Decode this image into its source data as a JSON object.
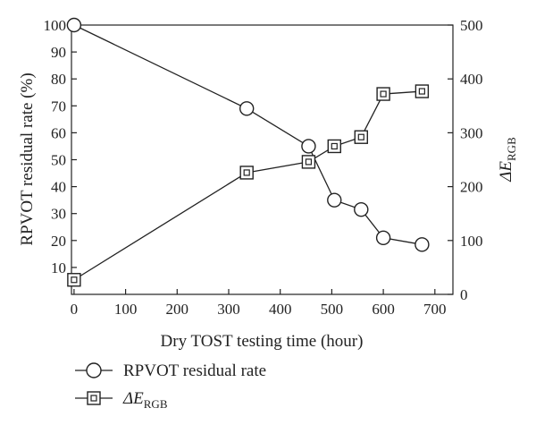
{
  "chart_data": {
    "type": "line",
    "xlabel": "Dry TOST testing time (hour)",
    "ylabel_left": "RPVOT residual rate (%)",
    "ylabel_right": {
      "base": "ΔE",
      "subscript": "RGB"
    },
    "xlim": [
      -5,
      735
    ],
    "ylim_left": [
      0,
      100
    ],
    "ylim_right": [
      0,
      500
    ],
    "x_ticks": [
      "0",
      "100",
      "200",
      "300",
      "400",
      "500",
      "600",
      "700"
    ],
    "y_ticks_left": [
      "10",
      "20",
      "30",
      "40",
      "50",
      "60",
      "70",
      "80",
      "90",
      "100"
    ],
    "y_ticks_right": [
      "0",
      "100",
      "200",
      "300",
      "400",
      "500"
    ],
    "series": [
      {
        "name": "RPVOT residual rate",
        "axis": "left",
        "marker": "circle",
        "x": [
          0,
          335,
          455,
          505,
          557,
          600,
          675
        ],
        "y": [
          100,
          69,
          55,
          35,
          31.5,
          21,
          18.5
        ]
      },
      {
        "name": {
          "base": "ΔE",
          "subscript": "RGB"
        },
        "axis": "right",
        "marker": "square-dot",
        "x": [
          0,
          335,
          455,
          505,
          557,
          600,
          675
        ],
        "y": [
          27,
          226,
          246,
          275,
          292,
          372,
          377
        ]
      }
    ],
    "legend": "below"
  }
}
